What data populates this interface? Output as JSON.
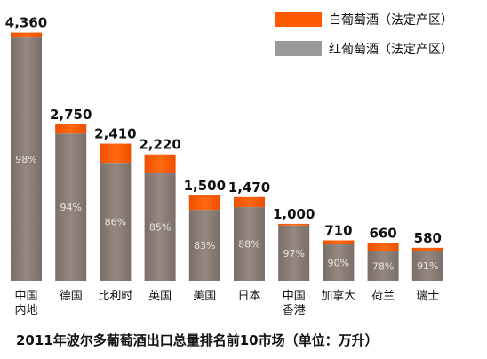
{
  "chart_data": {
    "type": "bar",
    "stacked": true,
    "title": "2011年波尔多葡萄酒出口总量排名前10市场（单位：万升）",
    "categories": [
      [
        "中国",
        "内地"
      ],
      [
        "德国"
      ],
      [
        "比利时"
      ],
      [
        "英国"
      ],
      [
        "美国"
      ],
      [
        "日本"
      ],
      [
        "中国",
        "香港"
      ],
      [
        "加拿大"
      ],
      [
        "荷兰"
      ],
      [
        "瑞士"
      ]
    ],
    "totals": [
      4360,
      2750,
      2410,
      2220,
      1500,
      1470,
      1000,
      710,
      660,
      580
    ],
    "total_labels": [
      "4,360",
      "2,750",
      "2,410",
      "2,220",
      "1,500",
      "1,470",
      "1,000",
      "710",
      "660",
      "580"
    ],
    "red_share_labels": [
      "98%",
      "94%",
      "86%",
      "85%",
      "83%",
      "88%",
      "97%",
      "90%",
      "78%",
      "91%"
    ],
    "red_share": [
      0.98,
      0.94,
      0.86,
      0.85,
      0.83,
      0.88,
      0.97,
      0.9,
      0.78,
      0.91
    ],
    "series": [
      {
        "name": "白葡萄酒（法定产区）",
        "color": "#ff5a00"
      },
      {
        "name": "红葡萄酒（法定产区）",
        "color": "#8c7f78"
      }
    ],
    "legend": "top-right",
    "ylim": [
      0,
      4400
    ],
    "grid": false
  }
}
